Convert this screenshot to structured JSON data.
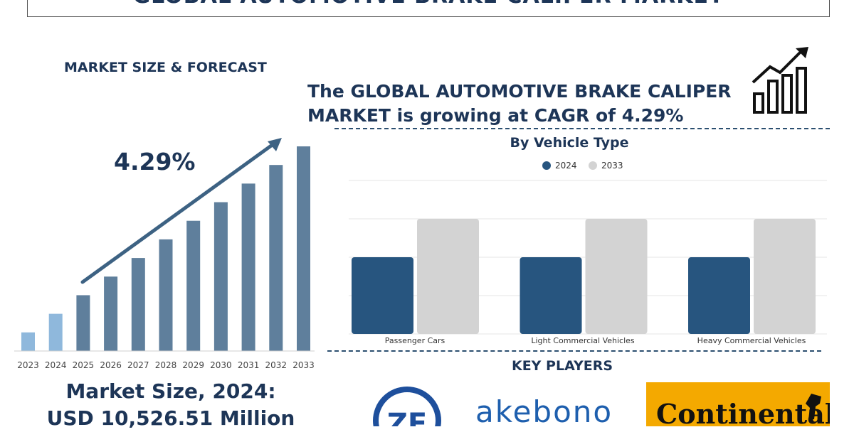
{
  "header": {
    "title": "GLOBAL AUTOMOTIVE BRAKE CALIPER MARKET"
  },
  "left": {
    "section_title": "MARKET SIZE & FORECAST",
    "cagr_label": "4.29%",
    "market_size_line1": "Market Size, 2024:",
    "market_size_line2": "USD 10,526.51 Million"
  },
  "headline": {
    "line1": "The GLOBAL AUTOMOTIVE BRAKE CALIPER",
    "line2": "MARKET is growing at CAGR of 4.29%"
  },
  "key_players": {
    "title": "KEY PLAYERS",
    "logos": [
      "ZF",
      "akebono",
      "Continental"
    ]
  },
  "colors": {
    "navy": "#1d3557",
    "bar_dark": "#27557f",
    "bar_light": "#d3d3d3",
    "forecast_bar": "#5f7f9c",
    "early_bar": "#8fb8dc",
    "continental_yellow": "#f4a900"
  },
  "chart_data": [
    {
      "type": "bar",
      "title": "",
      "categories": [
        "2023",
        "2024",
        "2025",
        "2026",
        "2027",
        "2028",
        "2029",
        "2030",
        "2031",
        "2032",
        "2033"
      ],
      "values": [
        1.0,
        2.0,
        3.0,
        4.0,
        5.0,
        6.0,
        7.0,
        8.0,
        9.0,
        10.0,
        11.0
      ],
      "ylim": [
        0,
        11
      ],
      "grid": false,
      "annotation": "4.29%"
    },
    {
      "type": "bar",
      "title": "By Vehicle Type",
      "categories": [
        "Passenger Cars",
        "Light Commercial Vehicles",
        "Heavy Commercial Vehicles"
      ],
      "series": [
        {
          "name": "2024",
          "values": [
            2,
            2,
            2
          ]
        },
        {
          "name": "2033",
          "values": [
            3,
            3,
            3
          ]
        }
      ],
      "ylim": [
        0,
        4
      ],
      "grid": true,
      "legend": "top-center"
    }
  ]
}
